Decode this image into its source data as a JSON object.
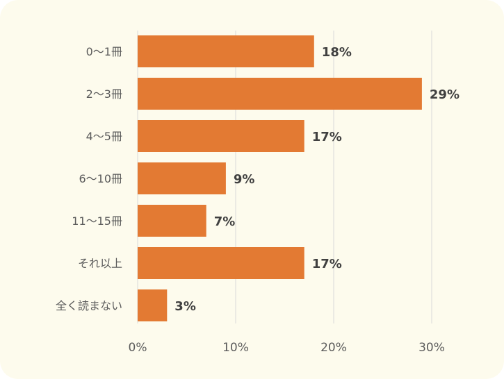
{
  "chart_data": {
    "type": "bar",
    "orientation": "horizontal",
    "categories": [
      "0〜1冊",
      "2〜3冊",
      "4〜5冊",
      "6〜10冊",
      "11〜15冊",
      "それ以上",
      "全く読まない"
    ],
    "values": [
      18,
      29,
      17,
      9,
      7,
      17,
      3
    ],
    "value_labels": [
      "18%",
      "29%",
      "17%",
      "9%",
      "7%",
      "17%",
      "3%"
    ],
    "xlim": [
      0,
      30
    ],
    "x_ticks": [
      0,
      10,
      20,
      30
    ],
    "x_tick_labels": [
      "0%",
      "10%",
      "20%",
      "30%"
    ],
    "grid": "vertical",
    "bar_color": "#e37a33",
    "background_color": "#fdfbed"
  }
}
